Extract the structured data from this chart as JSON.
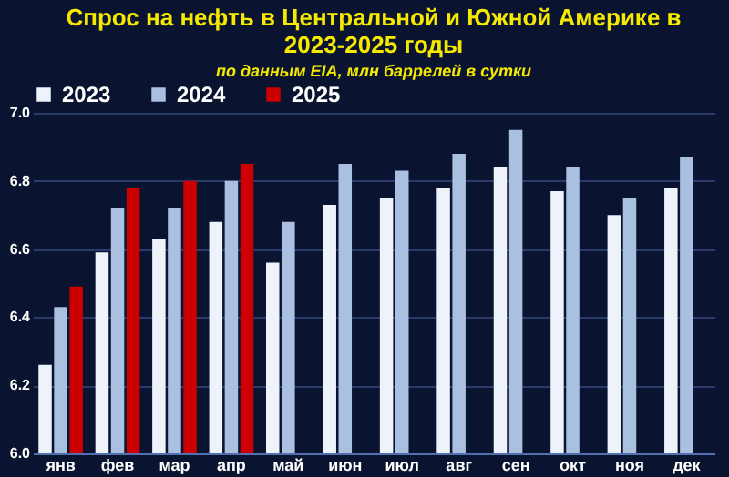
{
  "chart_data": {
    "type": "bar",
    "title": "Спрос на нефть в Центральной и Южной Америке в 2023-2025 годы",
    "subtitle": "по данным EIA, млн баррелей в сутки",
    "categories": [
      "янв",
      "фев",
      "мар",
      "апр",
      "май",
      "июн",
      "июл",
      "авг",
      "сен",
      "окт",
      "ноя",
      "дек"
    ],
    "series": [
      {
        "name": "2023",
        "color": "#eef2fa",
        "values": [
          6.26,
          6.59,
          6.63,
          6.68,
          6.56,
          6.73,
          6.75,
          6.78,
          6.84,
          6.77,
          6.7,
          6.78
        ]
      },
      {
        "name": "2024",
        "color": "#a9c0e0",
        "values": [
          6.43,
          6.72,
          6.72,
          6.8,
          6.68,
          6.85,
          6.83,
          6.88,
          6.95,
          6.84,
          6.75,
          6.87
        ]
      },
      {
        "name": "2025",
        "color": "#cc0000",
        "values": [
          6.49,
          6.78,
          6.8,
          6.85,
          null,
          null,
          null,
          null,
          null,
          null,
          null,
          null
        ]
      }
    ],
    "ylim": [
      6.0,
      7.0
    ],
    "yticks": [
      {
        "value": 6.0,
        "label": "6.0"
      },
      6.2,
      6.4,
      6.6,
      6.8,
      {
        "value": 7.0,
        "label": "7.0"
      }
    ],
    "grid": "y",
    "legend": "top"
  }
}
